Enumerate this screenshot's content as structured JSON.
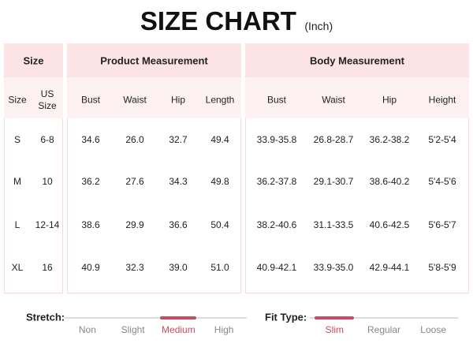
{
  "title": "SIZE CHART",
  "unit": "(Inch)",
  "table": {
    "groups": [
      "Size",
      "Product Measurement",
      "Body Measurement"
    ],
    "headers": [
      "Size",
      "US Size",
      "Bust",
      "Waist",
      "Hip",
      "Length",
      "Bust",
      "Waist",
      "Hip",
      "Height"
    ],
    "rows": [
      [
        "S",
        "6-8",
        "34.6",
        "26.0",
        "32.7",
        "49.4",
        "33.9-35.8",
        "26.8-28.7",
        "36.2-38.2",
        "5'2-5'4"
      ],
      [
        "M",
        "10",
        "36.2",
        "27.6",
        "34.3",
        "49.8",
        "36.2-37.8",
        "29.1-30.7",
        "38.6-40.2",
        "5'4-5'6"
      ],
      [
        "L",
        "12-14",
        "38.6",
        "29.9",
        "36.6",
        "50.4",
        "38.2-40.6",
        "31.1-33.5",
        "40.6-42.5",
        "5'6-5'7"
      ],
      [
        "XL",
        "16",
        "40.9",
        "32.3",
        "39.0",
        "51.0",
        "40.9-42.1",
        "33.9-35.0",
        "42.9-44.1",
        "5'8-5'9"
      ]
    ]
  },
  "stretch": {
    "label": "Stretch:",
    "options": [
      "Non",
      "Slight",
      "Medium",
      "High"
    ],
    "selected_index": 2
  },
  "fit_type": {
    "label": "Fit Type:",
    "options": [
      "Slim",
      "Regular",
      "Loose"
    ],
    "selected_index": 0
  }
}
